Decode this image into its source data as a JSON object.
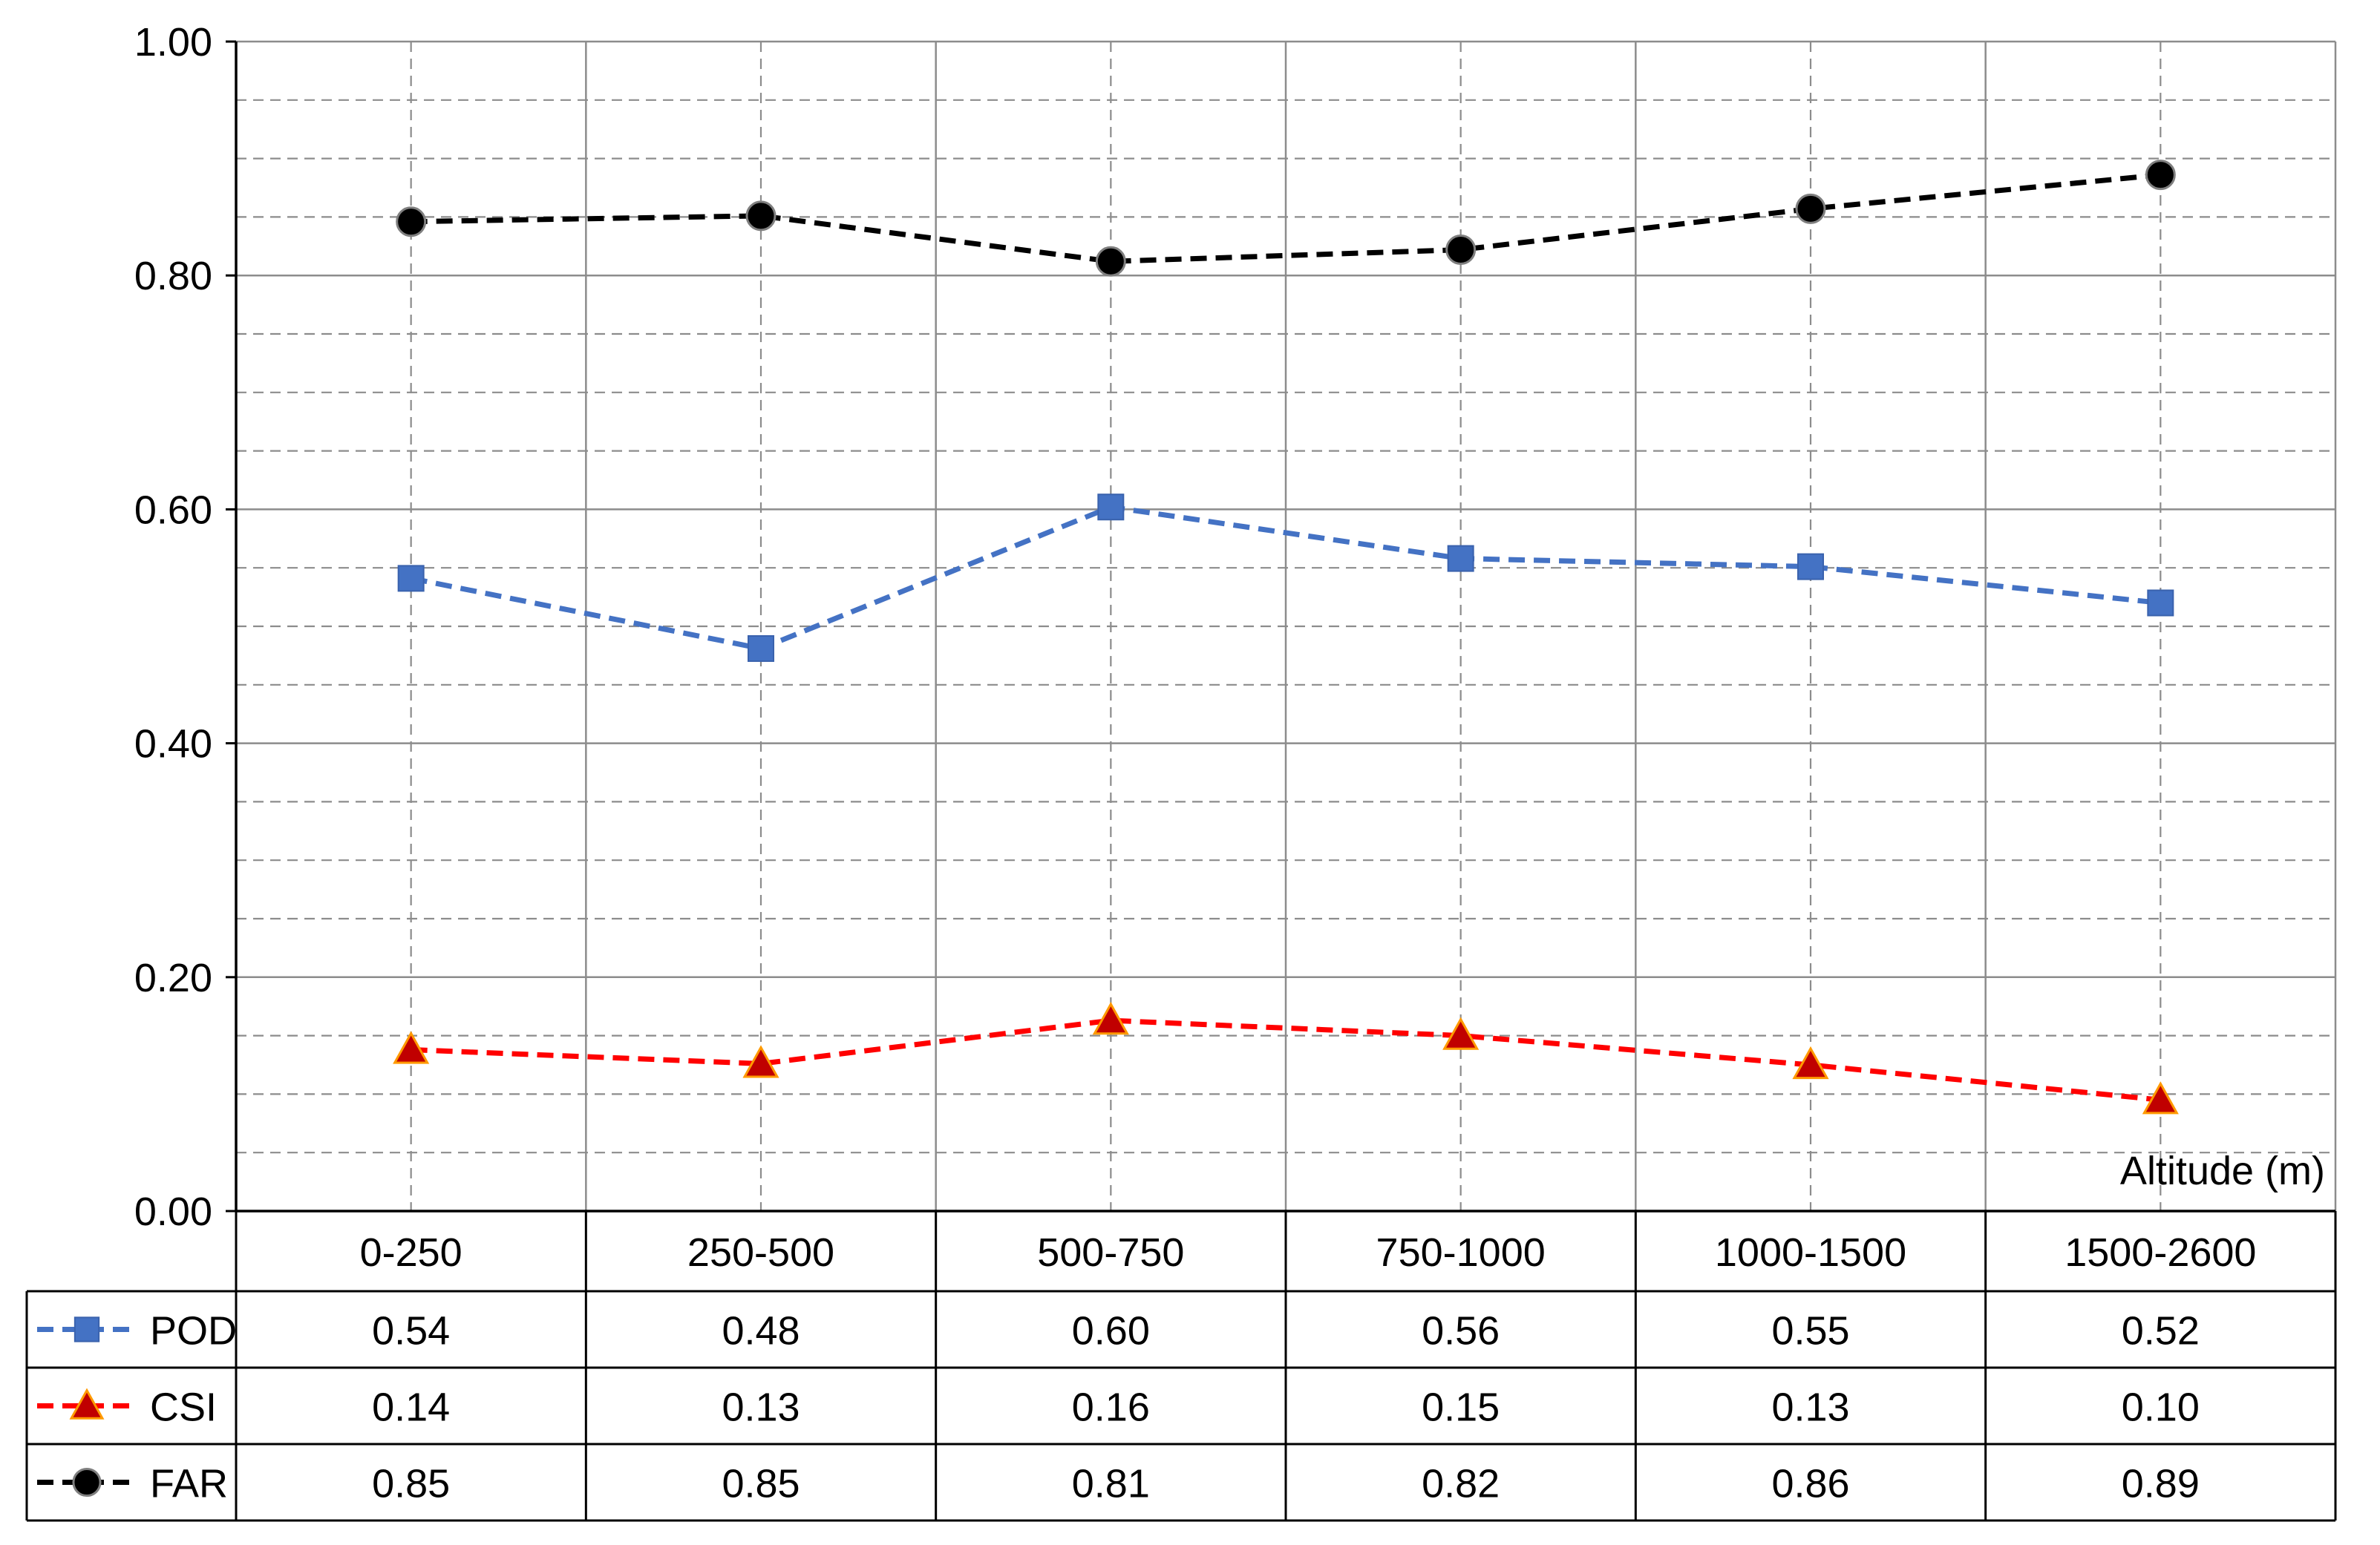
{
  "chart_data": {
    "type": "line",
    "categories": [
      "0-250",
      "250-500",
      "500-750",
      "750-1000",
      "1000-1500",
      "1500-2600"
    ],
    "xlabel": "Altitude (m)",
    "ylabel": "",
    "ylim": [
      0,
      1
    ],
    "yticks": [
      "0.00",
      "0.20",
      "0.40",
      "0.60",
      "0.80",
      "1.00"
    ],
    "grid": true,
    "legend": "data-table-rows",
    "series": [
      {
        "name": "POD",
        "marker": "square",
        "color": "#4472C4",
        "values": [
          0.541,
          0.481,
          0.602,
          0.558,
          0.551,
          0.52
        ],
        "labels": [
          "0.54",
          "0.48",
          "0.60",
          "0.56",
          "0.55",
          "0.52"
        ]
      },
      {
        "name": "CSI",
        "marker": "triangle",
        "color": "#FF0000",
        "marker_fill": "#C00000",
        "values": [
          0.138,
          0.126,
          0.163,
          0.15,
          0.125,
          0.095
        ],
        "labels": [
          "0.14",
          "0.13",
          "0.16",
          "0.15",
          "0.13",
          "0.10"
        ]
      },
      {
        "name": "FAR",
        "marker": "circle",
        "color": "#000000",
        "values": [
          0.846,
          0.851,
          0.812,
          0.822,
          0.857,
          0.886
        ],
        "labels": [
          "0.85",
          "0.85",
          "0.81",
          "0.82",
          "0.86",
          "0.89"
        ]
      }
    ]
  }
}
